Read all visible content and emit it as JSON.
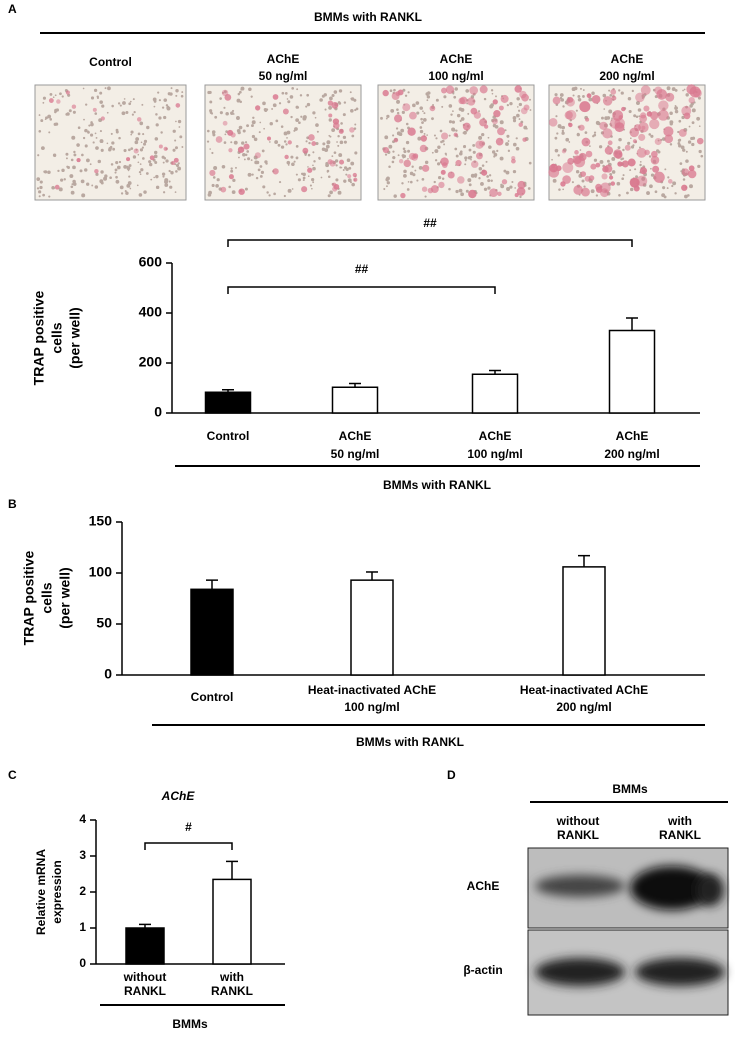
{
  "panel_labels": [
    "A",
    "B",
    "C",
    "D"
  ],
  "panel_a": {
    "header": "BMMs with RANKL",
    "images": [
      [
        "Control"
      ],
      [
        "AChE",
        "50 ng/ml"
      ],
      [
        "AChE",
        "100 ng/ml"
      ],
      [
        "AChE",
        "200 ng/ml"
      ]
    ]
  },
  "chart_data": [
    {
      "type": "bar",
      "y_label": [
        "TRAP  positive",
        "cells",
        "(per well)"
      ],
      "categories": [
        [
          "Control"
        ],
        [
          "AChE",
          "50 ng/ml"
        ],
        [
          "AChE",
          "100 ng/ml"
        ],
        [
          "AChE",
          "200 ng/ml"
        ]
      ],
      "values": [
        83,
        103,
        155,
        330
      ],
      "errors": [
        10,
        15,
        15,
        50
      ],
      "colors": [
        "#000000",
        "#ffffff",
        "#ffffff",
        "#ffffff"
      ],
      "ylim": [
        0,
        600
      ],
      "yticks": [
        0,
        200,
        400,
        600
      ],
      "x_label": "BMMs with RANKL",
      "annotations": [
        {
          "text": "##",
          "categories": [
            0,
            3
          ]
        },
        {
          "text": "##",
          "categories": [
            0,
            2
          ]
        }
      ]
    },
    {
      "type": "bar",
      "y_label": [
        "TRAP  positive",
        "cells",
        "(per well)"
      ],
      "categories": [
        [
          "Control"
        ],
        [
          "Heat-inactivated AChE",
          "100 ng/ml"
        ],
        [
          "Heat-inactivated AChE",
          "200 ng/ml"
        ]
      ],
      "values": [
        84,
        93,
        106
      ],
      "errors": [
        9,
        8,
        11
      ],
      "colors": [
        "#000000",
        "#ffffff",
        "#ffffff"
      ],
      "ylim": [
        0,
        150
      ],
      "yticks": [
        0,
        50,
        100,
        150
      ],
      "x_label": "BMMs with RANKL"
    },
    {
      "type": "bar",
      "title": "AChE",
      "y_label": [
        "Relative mRNA",
        "expression"
      ],
      "categories": [
        [
          "without",
          "RANKL"
        ],
        [
          "with",
          "RANKL"
        ]
      ],
      "values": [
        1.0,
        2.35
      ],
      "errors": [
        0.1,
        0.5
      ],
      "colors": [
        "#000000",
        "#ffffff"
      ],
      "ylim": [
        0,
        4
      ],
      "yticks": [
        0,
        1,
        2,
        3,
        4
      ],
      "x_label": "BMMs",
      "annotations": [
        {
          "text": "#",
          "categories": [
            0,
            1
          ]
        }
      ]
    }
  ],
  "panel_d": {
    "header": "BMMs",
    "columns": [
      [
        "without",
        "RANKL"
      ],
      [
        "with",
        "RANKL"
      ]
    ],
    "rows": [
      "AChE",
      "β-actin"
    ]
  }
}
